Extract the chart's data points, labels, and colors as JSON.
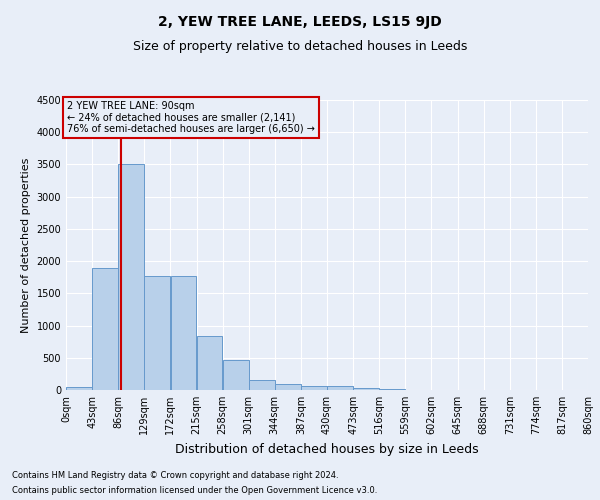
{
  "title": "2, YEW TREE LANE, LEEDS, LS15 9JD",
  "subtitle": "Size of property relative to detached houses in Leeds",
  "xlabel": "Distribution of detached houses by size in Leeds",
  "ylabel": "Number of detached properties",
  "footnote1": "Contains HM Land Registry data © Crown copyright and database right 2024.",
  "footnote2": "Contains public sector information licensed under the Open Government Licence v3.0.",
  "annotation_line1": "2 YEW TREE LANE: 90sqm",
  "annotation_line2": "← 24% of detached houses are smaller (2,141)",
  "annotation_line3": "76% of semi-detached houses are larger (6,650) →",
  "bar_edges": [
    0,
    43,
    86,
    129,
    172,
    215,
    258,
    301,
    344,
    387,
    430,
    473,
    516,
    559,
    602,
    645,
    688,
    731,
    774,
    817,
    860
  ],
  "bar_values": [
    50,
    1900,
    3500,
    1775,
    1775,
    840,
    460,
    160,
    100,
    65,
    55,
    30,
    20,
    5,
    2,
    1,
    1,
    0,
    0,
    0
  ],
  "bar_color": "#b8d0ea",
  "bar_edge_color": "#6699cc",
  "vline_x": 90,
  "vline_color": "#cc0000",
  "ylim": [
    0,
    4500
  ],
  "yticks": [
    0,
    500,
    1000,
    1500,
    2000,
    2500,
    3000,
    3500,
    4000,
    4500
  ],
  "bg_color": "#e8eef8",
  "grid_color": "#ffffff",
  "annotation_box_color": "#cc0000",
  "title_fontsize": 10,
  "subtitle_fontsize": 9,
  "ylabel_fontsize": 8,
  "xlabel_fontsize": 9,
  "tick_fontsize": 7,
  "footnote_fontsize": 6
}
